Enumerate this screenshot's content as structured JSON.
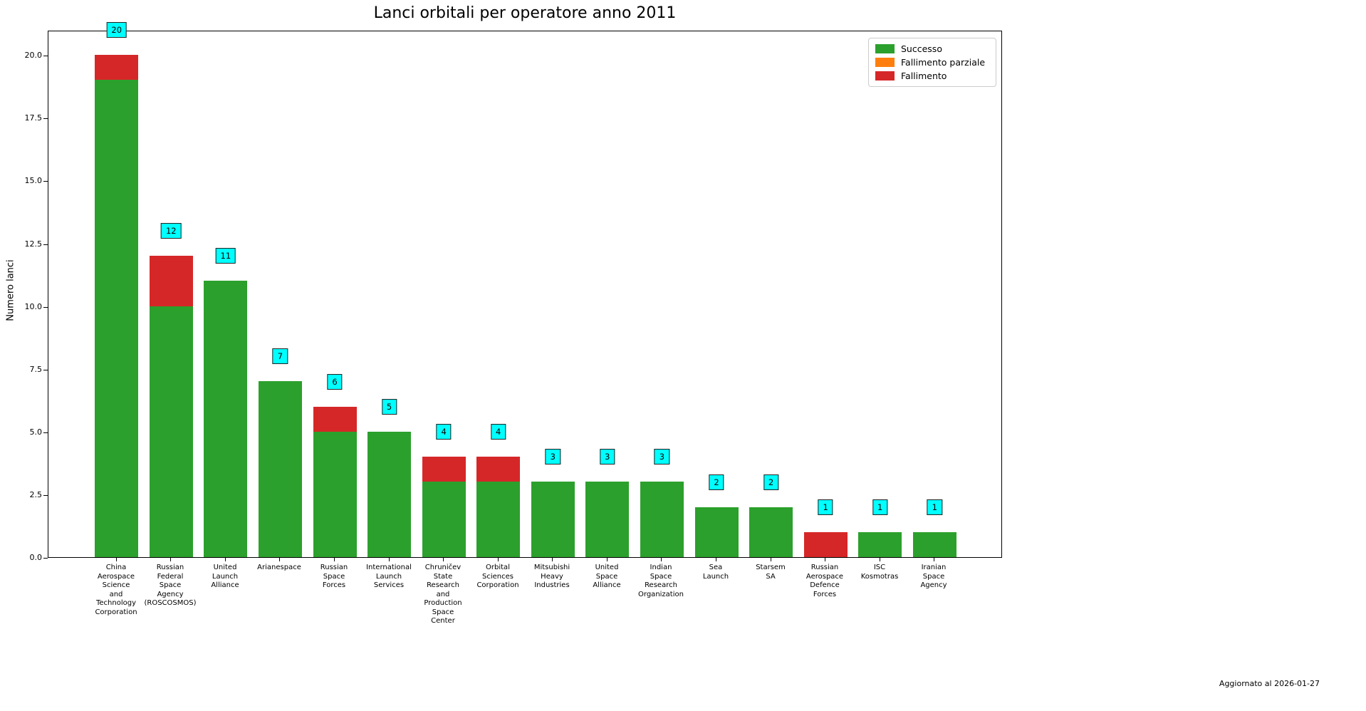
{
  "title": "Lanci orbitali per operatore anno 2011",
  "footer": {
    "updated_text": "Aggiornato al 2026-01-27"
  },
  "chart_data": {
    "type": "bar",
    "stacked": true,
    "title": "Lanci orbitali per operatore anno 2011",
    "xlabel": "",
    "ylabel": "Numero lanci",
    "ylim": [
      0,
      21
    ],
    "grid": false,
    "legend_position": "upper right",
    "yticks": [
      {
        "value": 0,
        "label": "0.0"
      },
      {
        "value": 2.5,
        "label": "2.5"
      },
      {
        "value": 5,
        "label": "5.0"
      },
      {
        "value": 7.5,
        "label": "7.5"
      },
      {
        "value": 10,
        "label": "10.0"
      },
      {
        "value": 12.5,
        "label": "12.5"
      },
      {
        "value": 15,
        "label": "15.0"
      },
      {
        "value": 17.5,
        "label": "17.5"
      },
      {
        "value": 20,
        "label": "20.0"
      }
    ],
    "categories": [
      "China Aerospace Science and Technology Corporation",
      "Russian Federal Space Agency (ROSCOSMOS)",
      "United Launch Alliance",
      "Arianespace",
      "Russian Space Forces",
      "International Launch Services",
      "Chruničev State Research and Production Space Center",
      "Orbital Sciences Corporation",
      "Mitsubishi Heavy Industries",
      "United Space Alliance",
      "Indian Space Research Organization",
      "Sea Launch",
      "Starsem SA",
      "Russian Aerospace Defence Forces",
      "ISC Kosmotras",
      "Iranian Space Agency"
    ],
    "series": [
      {
        "name": "Successo",
        "color": "#2ca02c",
        "values": [
          19,
          10,
          11,
          7,
          5,
          5,
          3,
          3,
          3,
          3,
          3,
          2,
          2,
          0,
          1,
          1
        ]
      },
      {
        "name": "Fallimento parziale",
        "color": "#ff7f0e",
        "values": [
          0,
          0,
          0,
          0,
          0,
          0,
          0,
          0,
          0,
          0,
          0,
          0,
          0,
          0,
          0,
          0
        ]
      },
      {
        "name": "Fallimento",
        "color": "#d62728",
        "values": [
          1,
          2,
          0,
          0,
          1,
          0,
          1,
          1,
          0,
          0,
          0,
          0,
          0,
          1,
          0,
          0
        ]
      }
    ],
    "totals": [
      20,
      12,
      11,
      7,
      6,
      5,
      4,
      4,
      3,
      3,
      3,
      2,
      2,
      1,
      1,
      1
    ],
    "annotation_style": {
      "background": "#00ffff",
      "border": "#222222"
    },
    "legend": {
      "entries": [
        {
          "label": "Successo",
          "color": "#2ca02c"
        },
        {
          "label": "Fallimento parziale",
          "color": "#ff7f0e"
        },
        {
          "label": "Fallimento",
          "color": "#d62728"
        }
      ]
    }
  }
}
